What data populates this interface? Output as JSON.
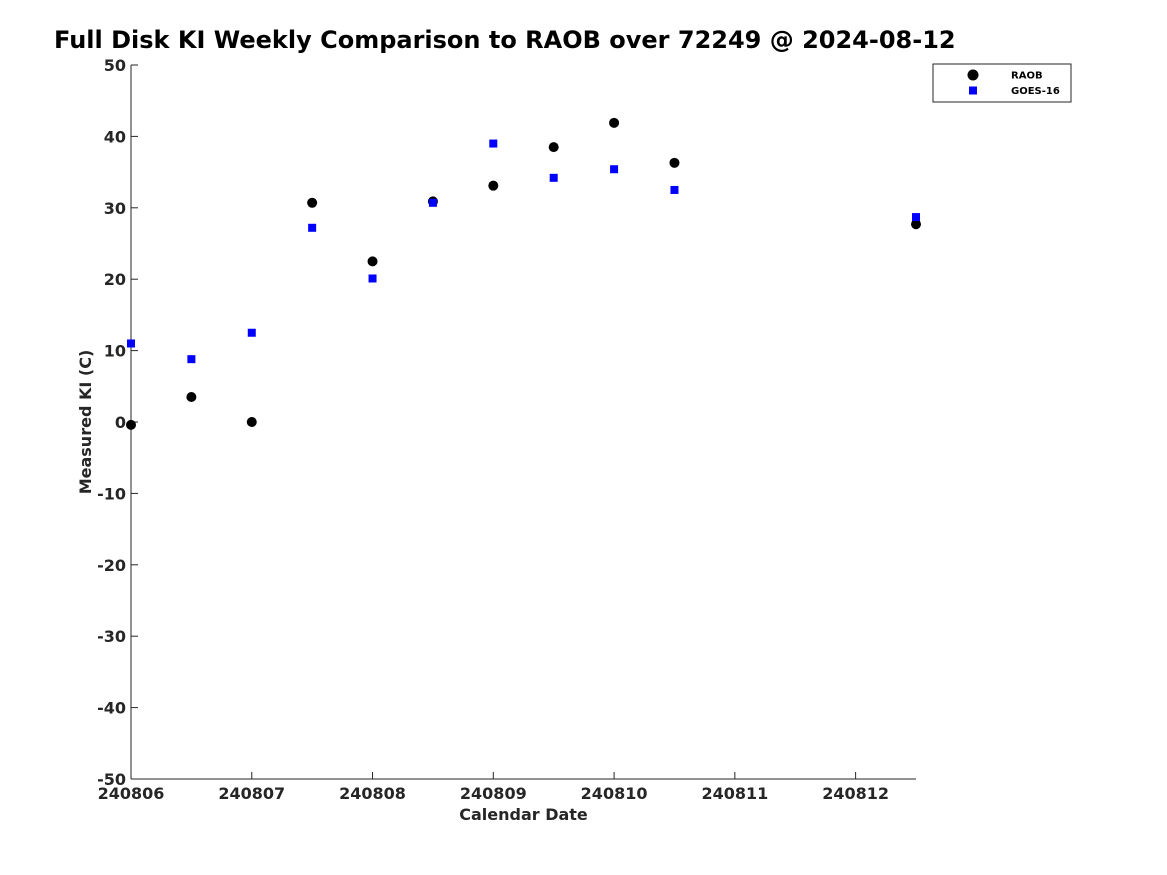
{
  "chart_data": {
    "type": "scatter",
    "title": "Full Disk KI Weekly Comparison to RAOB over 72249 @ 2024-08-12",
    "xlabel": "Calendar Date",
    "ylabel": "Measured KI (C)",
    "xlim": [
      240806,
      240812.5
    ],
    "ylim": [
      -50,
      50
    ],
    "x_ticks": [
      240806,
      240807,
      240808,
      240809,
      240810,
      240811,
      240812
    ],
    "x_tick_labels": [
      "240806",
      "240807",
      "240808",
      "240809",
      "240810",
      "240811",
      "240812"
    ],
    "y_ticks": [
      50,
      40,
      30,
      20,
      10,
      0,
      -10,
      -20,
      -30,
      -40,
      -50
    ],
    "y_tick_labels": [
      "50",
      "40",
      "30",
      "20",
      "10",
      "0",
      "-10",
      "-20",
      "-30",
      "-40",
      "-50"
    ],
    "grid": false,
    "legend_position": "top-right",
    "series": [
      {
        "name": "RAOB",
        "marker": "circle",
        "color": "#000000",
        "points": [
          {
            "x": 240806.0,
            "y": -0.4
          },
          {
            "x": 240806.5,
            "y": 3.5
          },
          {
            "x": 240807.0,
            "y": 0.0
          },
          {
            "x": 240807.5,
            "y": 30.7
          },
          {
            "x": 240808.0,
            "y": 22.5
          },
          {
            "x": 240808.5,
            "y": 30.9
          },
          {
            "x": 240809.0,
            "y": 33.1
          },
          {
            "x": 240809.5,
            "y": 38.5
          },
          {
            "x": 240810.0,
            "y": 41.9
          },
          {
            "x": 240810.5,
            "y": 36.3
          },
          {
            "x": 240812.5,
            "y": 27.7
          }
        ]
      },
      {
        "name": "GOES-16",
        "marker": "square",
        "color": "#0000ff",
        "points": [
          {
            "x": 240806.0,
            "y": 11.0
          },
          {
            "x": 240806.5,
            "y": 8.8
          },
          {
            "x": 240807.0,
            "y": 12.5
          },
          {
            "x": 240807.5,
            "y": 27.2
          },
          {
            "x": 240808.0,
            "y": 20.1
          },
          {
            "x": 240808.5,
            "y": 30.7
          },
          {
            "x": 240809.0,
            "y": 39.0
          },
          {
            "x": 240809.5,
            "y": 34.2
          },
          {
            "x": 240810.0,
            "y": 35.4
          },
          {
            "x": 240810.5,
            "y": 32.5
          },
          {
            "x": 240812.5,
            "y": 28.7
          }
        ]
      }
    ]
  }
}
